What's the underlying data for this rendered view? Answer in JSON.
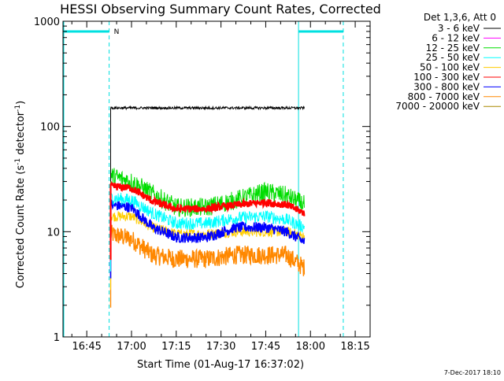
{
  "chart_data": {
    "type": "line",
    "title": "HESSI Observing Summary Count Rates, Corrected",
    "xlabel": "Start Time (01-Aug-17 16:37:02)",
    "ylabel_parts": [
      "Corrected Count Rate (s",
      "-1",
      " detector",
      "-1",
      ")"
    ],
    "yscale": "log",
    "ylim": [
      1,
      1000
    ],
    "xlim": [
      "16:37:02",
      "18:20:00"
    ],
    "x_ticks": [
      "16:45",
      "17:00",
      "17:15",
      "17:30",
      "17:45",
      "18:00",
      "18:15"
    ],
    "y_ticks": [
      {
        "value": 1,
        "label": "1"
      },
      {
        "value": 10,
        "label": "10"
      },
      {
        "value": 100,
        "label": "100"
      },
      {
        "value": 1000,
        "label": "1000"
      }
    ],
    "legend_header": "Det 1,3,6, Att 0",
    "series": [
      {
        "name": "3 - 6 keV",
        "color": "#000000",
        "start": "16:53:00",
        "end": "17:58:00",
        "points": [
          [
            "16:53:00",
            150
          ],
          [
            "17:15:00",
            150
          ],
          [
            "17:45:00",
            150
          ],
          [
            "17:58:00",
            150
          ]
        ]
      },
      {
        "name": "6 - 12 keV",
        "color": "#ff00ff",
        "start": "16:53:00",
        "end": "17:58:00",
        "points": []
      },
      {
        "name": "12 - 25 keV",
        "color": "#00dd00",
        "start": "16:53:00",
        "end": "17:58:00",
        "points": [
          [
            "16:53:00",
            34
          ],
          [
            "17:00:00",
            30
          ],
          [
            "17:07:00",
            23
          ],
          [
            "17:15:00",
            17
          ],
          [
            "17:25:00",
            17
          ],
          [
            "17:35:00",
            20
          ],
          [
            "17:45:00",
            24
          ],
          [
            "17:52:00",
            22
          ],
          [
            "17:58:00",
            18
          ]
        ]
      },
      {
        "name": "25 - 50 keV",
        "color": "#00ffff",
        "start": "16:53:00",
        "end": "17:58:00",
        "points": [
          [
            "16:53:00",
            21
          ],
          [
            "17:00:00",
            20
          ],
          [
            "17:07:00",
            15
          ],
          [
            "17:15:00",
            12
          ],
          [
            "17:25:00",
            12
          ],
          [
            "17:35:00",
            13.5
          ],
          [
            "17:45:00",
            14
          ],
          [
            "17:52:00",
            13
          ],
          [
            "17:58:00",
            11
          ]
        ]
      },
      {
        "name": "50 - 100 keV",
        "color": "#ffcc00",
        "start": "16:53:00",
        "end": "17:58:00",
        "points": [
          [
            "16:53:00",
            14
          ],
          [
            "17:00:00",
            14
          ],
          [
            "17:07:00",
            11
          ],
          [
            "17:15:00",
            9.5
          ],
          [
            "17:25:00",
            9.5
          ],
          [
            "17:35:00",
            10
          ],
          [
            "17:45:00",
            10
          ],
          [
            "17:52:00",
            10
          ],
          [
            "17:58:00",
            9
          ]
        ]
      },
      {
        "name": "100 - 300 keV",
        "color": "#ff0000",
        "start": "16:53:00",
        "end": "17:58:00",
        "points": [
          [
            "16:53:00",
            27
          ],
          [
            "17:00:00",
            26
          ],
          [
            "17:07:00",
            19.5
          ],
          [
            "17:15:00",
            16.5
          ],
          [
            "17:25:00",
            16.5
          ],
          [
            "17:35:00",
            18
          ],
          [
            "17:45:00",
            19
          ],
          [
            "17:52:00",
            18
          ],
          [
            "17:58:00",
            15
          ]
        ]
      },
      {
        "name": "300 - 800 keV",
        "color": "#0000ff",
        "start": "16:53:00",
        "end": "17:58:00",
        "points": [
          [
            "16:53:00",
            18
          ],
          [
            "17:00:00",
            17
          ],
          [
            "17:07:00",
            11
          ],
          [
            "17:15:00",
            8.8
          ],
          [
            "17:25:00",
            8.8
          ],
          [
            "17:35:00",
            11
          ],
          [
            "17:45:00",
            11
          ],
          [
            "17:52:00",
            10
          ],
          [
            "17:58:00",
            8
          ]
        ]
      },
      {
        "name": "800 - 7000 keV",
        "color": "#ff8800",
        "start": "16:53:00",
        "end": "17:58:00",
        "points": [
          [
            "16:53:00",
            9.5
          ],
          [
            "17:00:00",
            8.5
          ],
          [
            "17:07:00",
            6
          ],
          [
            "17:15:00",
            5.5
          ],
          [
            "17:25:00",
            5.5
          ],
          [
            "17:35:00",
            6
          ],
          [
            "17:45:00",
            6
          ],
          [
            "17:52:00",
            6
          ],
          [
            "17:58:00",
            4.5
          ]
        ]
      },
      {
        "name": "7000 - 20000 keV",
        "color": "#aa8800",
        "start": "16:53:00",
        "end": "17:58:00",
        "points": []
      }
    ],
    "night_periods": [
      [
        "16:37:02",
        "16:52:30"
      ],
      [
        "17:56:00",
        "18:11:00"
      ]
    ],
    "night_bar_color": "#00e0e0",
    "night_label": "N",
    "footer_date": "7-Dec-2017 18:10"
  }
}
